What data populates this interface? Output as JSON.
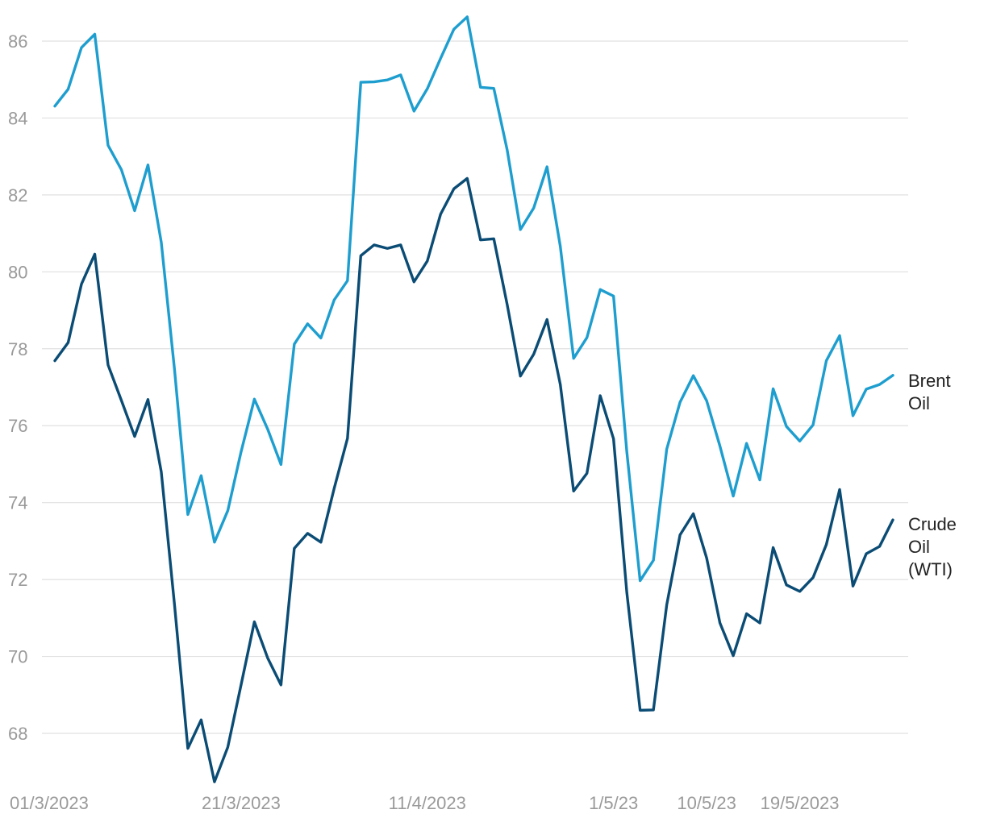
{
  "chart_data": {
    "type": "line",
    "title": "",
    "xlabel": "",
    "ylabel": "",
    "ylim": [
      66.8,
      86.8
    ],
    "y_ticks": [
      68,
      70,
      72,
      74,
      76,
      78,
      80,
      82,
      84,
      86
    ],
    "grid": true,
    "x_tick_labels": [
      {
        "index": 0,
        "label": "01/3/2023"
      },
      {
        "index": 14,
        "label": "21/3/2023"
      },
      {
        "index": 28,
        "label": "11/4/2023"
      },
      {
        "index": 42,
        "label": "1/5/23"
      },
      {
        "index": 49,
        "label": "10/5/23"
      },
      {
        "index": 56,
        "label": "19/5/2023"
      }
    ],
    "series": [
      {
        "name": "Brent Oil",
        "color": "#1e9ecf",
        "values": [
          84.31,
          84.75,
          85.83,
          86.18,
          83.29,
          82.66,
          81.59,
          82.78,
          80.77,
          77.45,
          73.69,
          74.7,
          72.97,
          73.79,
          75.32,
          76.69,
          75.91,
          74.99,
          78.12,
          78.65,
          78.28,
          79.27,
          79.77,
          84.93,
          84.94,
          84.99,
          85.12,
          84.18,
          84.76,
          85.55,
          86.31,
          86.63,
          84.8,
          84.77,
          83.18,
          81.1,
          81.66,
          82.73,
          80.66,
          77.75,
          78.29,
          79.54,
          79.37,
          75.32,
          71.97,
          72.5,
          75.39,
          76.61,
          77.3,
          76.65,
          75.47,
          74.17,
          75.54,
          74.59,
          76.96,
          75.98,
          75.6,
          76.02,
          77.69,
          78.34,
          76.26,
          76.95,
          77.07,
          77.31
        ]
      },
      {
        "name": "Crude Oil (WTI)",
        "color": "#0b4c75",
        "values": [
          77.69,
          78.16,
          79.68,
          80.46,
          77.58,
          76.66,
          75.72,
          76.68,
          74.8,
          71.33,
          67.61,
          68.35,
          66.74,
          67.64,
          69.26,
          70.9,
          69.96,
          69.26,
          72.81,
          73.2,
          72.97,
          74.37,
          75.67,
          80.42,
          80.7,
          80.61,
          80.7,
          79.74,
          80.28,
          81.5,
          82.16,
          82.43,
          80.83,
          80.86,
          79.16,
          77.29,
          77.86,
          78.76,
          77.07,
          74.3,
          74.76,
          76.78,
          75.66,
          71.66,
          68.6,
          68.61,
          71.34,
          73.16,
          73.71,
          72.56,
          70.87,
          70.02,
          71.11,
          70.87,
          72.83,
          71.86,
          71.69,
          72.05,
          72.91,
          74.34,
          71.83,
          72.67,
          72.86,
          73.55
        ]
      }
    ]
  },
  "labels": {
    "brent_line1": "Brent",
    "brent_line2": "Oil",
    "wti_line1": "Crude",
    "wti_line2": "Oil",
    "wti_line3": "(WTI)"
  }
}
